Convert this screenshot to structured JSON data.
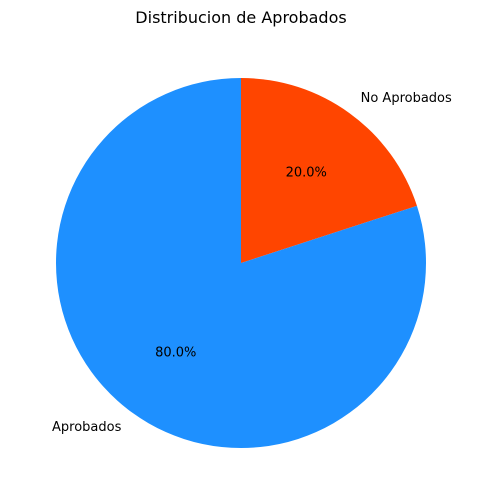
{
  "chart_data": {
    "type": "pie",
    "title": "Distribucion de Aprobados",
    "start_angle_deg": 90,
    "direction": "clockwise",
    "slices": [
      {
        "label": "No Aprobados",
        "value": 20.0,
        "pct_label": "20.0%",
        "color": "#FF4500"
      },
      {
        "label": "Aprobados",
        "value": 80.0,
        "pct_label": "80.0%",
        "color": "#1E90FF"
      }
    ]
  }
}
